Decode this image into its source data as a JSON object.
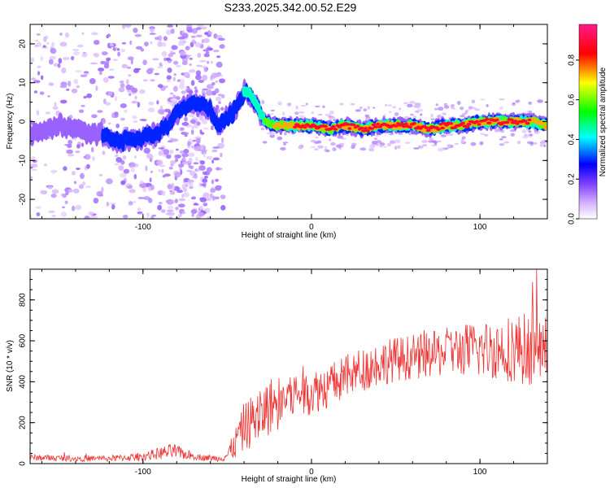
{
  "title": "S233.2025.342.00.52.E29",
  "chart_data": [
    {
      "type": "heatmap",
      "title": "S233.2025.342.00.52.E29",
      "xlabel": "Height of straight line (km)",
      "ylabel": "Frequency (Hz)",
      "xlim": [
        -167,
        140
      ],
      "ylim": [
        -25,
        25
      ],
      "xticks": [
        "-100",
        "0",
        "100"
      ],
      "yticks": [
        "20",
        "10",
        "0",
        "-10",
        "-20"
      ],
      "colorbar": {
        "label": "Normalized spectral amplitude",
        "range": [
          0,
          1
        ],
        "ticks": [
          "0.0",
          "0.2",
          "0.4",
          "0.6",
          "0.8"
        ],
        "colormap": [
          "#ffffff",
          "#c080ff",
          "#0000ff",
          "#00ffff",
          "#00ff00",
          "#ffff00",
          "#ff0000",
          "#ff1a8c"
        ]
      },
      "ridge": {
        "x": [
          -167,
          -150,
          -140,
          -125,
          -115,
          -100,
          -90,
          -80,
          -72,
          -62,
          -55,
          -45,
          -40,
          -37,
          -32,
          -28,
          -22,
          -10,
          0,
          10,
          20,
          30,
          40,
          50,
          60,
          70,
          80,
          90,
          100,
          110,
          120,
          130,
          140
        ],
        "y": [
          -4,
          -1,
          -2,
          -3,
          -5,
          -4,
          -3,
          2,
          5,
          4,
          -1,
          3,
          8,
          7,
          4,
          0,
          -1,
          -1,
          -1,
          -2,
          -1,
          -2,
          -1,
          -1,
          -1,
          -2,
          -1,
          -1,
          0,
          0,
          0,
          0,
          -1
        ],
        "peak_amplitude": [
          0.25,
          0.2,
          0.25,
          0.3,
          0.3,
          0.3,
          0.3,
          0.35,
          0.35,
          0.3,
          0.3,
          0.35,
          0.45,
          0.45,
          0.5,
          0.6,
          0.75,
          0.9,
          0.9,
          0.9,
          0.9,
          0.9,
          0.9,
          0.9,
          0.9,
          0.9,
          0.9,
          0.9,
          0.9,
          0.9,
          0.9,
          0.9,
          0.8
        ]
      }
    },
    {
      "type": "line",
      "xlabel": "Height of straight line (km)",
      "ylabel": "SNR (10 * v/v)",
      "xlim": [
        -167,
        140
      ],
      "ylim": [
        0,
        950
      ],
      "xticks": [
        "-100",
        "0",
        "100"
      ],
      "yticks": [
        "0",
        "200",
        "400",
        "600",
        "800"
      ],
      "series": [
        {
          "name": "SNR",
          "color": "#ee3333",
          "trend_x": [
            -167,
            -140,
            -120,
            -100,
            -90,
            -82,
            -75,
            -65,
            -55,
            -50,
            -45,
            -40,
            -35,
            -30,
            -25,
            -20,
            -15,
            -10,
            -5,
            0,
            10,
            20,
            30,
            40,
            50,
            60,
            70,
            80,
            90,
            100,
            110,
            120,
            130,
            140
          ],
          "trend_y": [
            30,
            25,
            25,
            35,
            50,
            60,
            45,
            30,
            25,
            40,
            100,
            180,
            210,
            240,
            280,
            300,
            320,
            340,
            340,
            350,
            380,
            420,
            460,
            490,
            510,
            520,
            530,
            545,
            555,
            555,
            560,
            565,
            560,
            560
          ],
          "noise_amplitude": [
            15,
            15,
            15,
            20,
            30,
            40,
            25,
            15,
            15,
            30,
            80,
            120,
            130,
            140,
            140,
            140,
            130,
            120,
            110,
            110,
            110,
            110,
            110,
            110,
            110,
            110,
            110,
            120,
            130,
            140,
            150,
            170,
            180,
            160
          ]
        }
      ]
    }
  ]
}
